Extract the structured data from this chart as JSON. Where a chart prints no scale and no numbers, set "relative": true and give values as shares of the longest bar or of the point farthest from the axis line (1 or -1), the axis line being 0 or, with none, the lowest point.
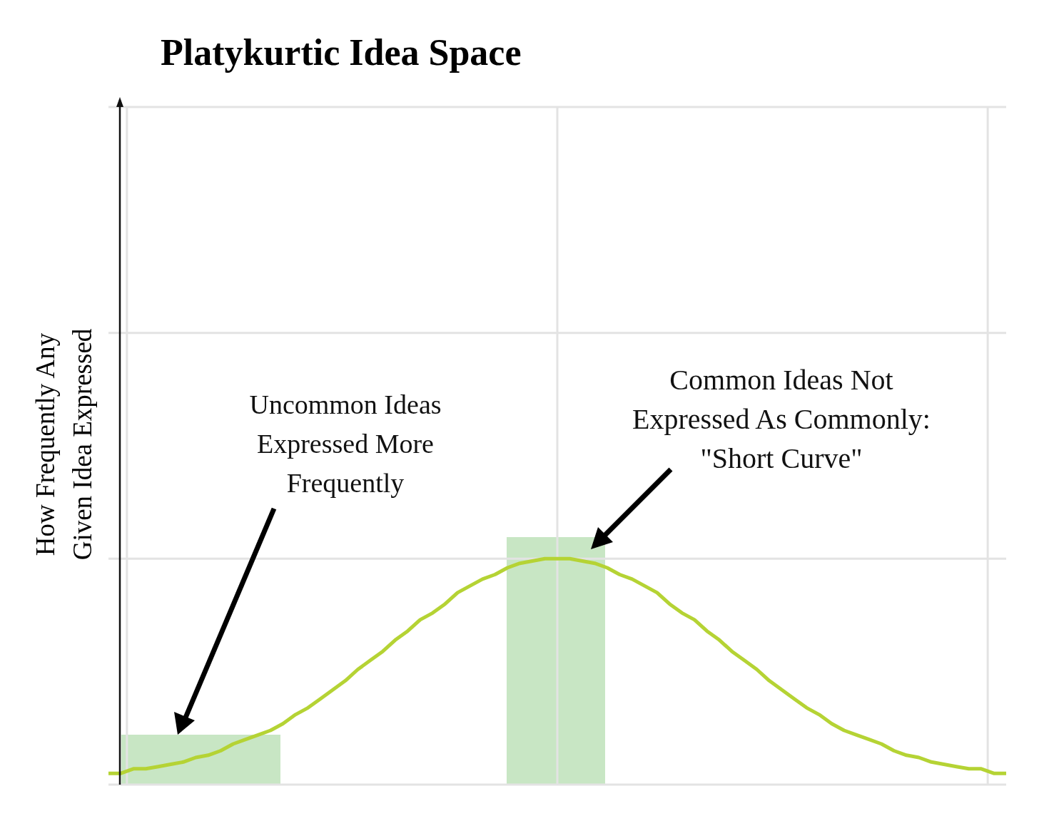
{
  "chart_data": {
    "type": "line",
    "title": "Platykurtic Idea Space",
    "ylabel": "How Frequently Any Given Idea Expressed",
    "relative": true,
    "grid": true,
    "marker": "none",
    "annotations": [
      "Uncommon Ideas Expressed More Frequently",
      "Common Ideas Not Expressed As Commonly: \"Short Curve\""
    ],
    "categories": [
      null,
      null,
      null,
      null,
      null,
      null,
      null,
      null,
      null,
      null,
      null,
      null,
      null,
      null,
      null,
      null,
      null,
      null,
      null,
      null,
      null,
      null,
      null,
      null,
      null,
      null,
      null,
      null,
      null,
      null,
      null,
      null,
      null,
      null,
      null,
      null,
      null,
      null,
      null,
      null,
      null,
      null,
      null,
      null,
      null,
      null,
      null,
      null,
      null,
      null,
      null,
      null,
      null,
      null,
      null,
      null,
      null,
      null,
      null,
      null,
      null,
      null,
      null,
      null,
      null,
      null,
      null,
      null,
      null,
      null,
      null,
      null,
      null
    ],
    "series": [
      {
        "color": "#b5d334",
        "values": [
          0.05,
          0.05,
          0.07,
          0.07,
          0.08,
          0.09,
          0.1,
          0.12,
          0.13,
          0.15,
          0.18,
          0.2,
          0.22,
          0.24,
          0.27,
          0.31,
          0.34,
          0.38,
          0.42,
          0.46,
          0.51,
          0.55,
          0.59,
          0.64,
          0.68,
          0.73,
          0.76,
          0.8,
          0.85,
          0.88,
          0.91,
          0.93,
          0.96,
          0.98,
          0.99,
          1,
          1,
          1,
          0.99,
          0.98,
          0.96,
          0.93,
          0.91,
          0.88,
          0.85,
          0.8,
          0.76,
          0.73,
          0.68,
          0.64,
          0.59,
          0.55,
          0.51,
          0.46,
          0.42,
          0.38,
          0.34,
          0.31,
          0.27,
          0.24,
          0.22,
          0.2,
          0.18,
          0.15,
          0.13,
          0.12,
          0.1,
          0.09,
          0.08,
          0.07,
          0.07,
          0.05,
          0.05
        ]
      }
    ]
  }
}
